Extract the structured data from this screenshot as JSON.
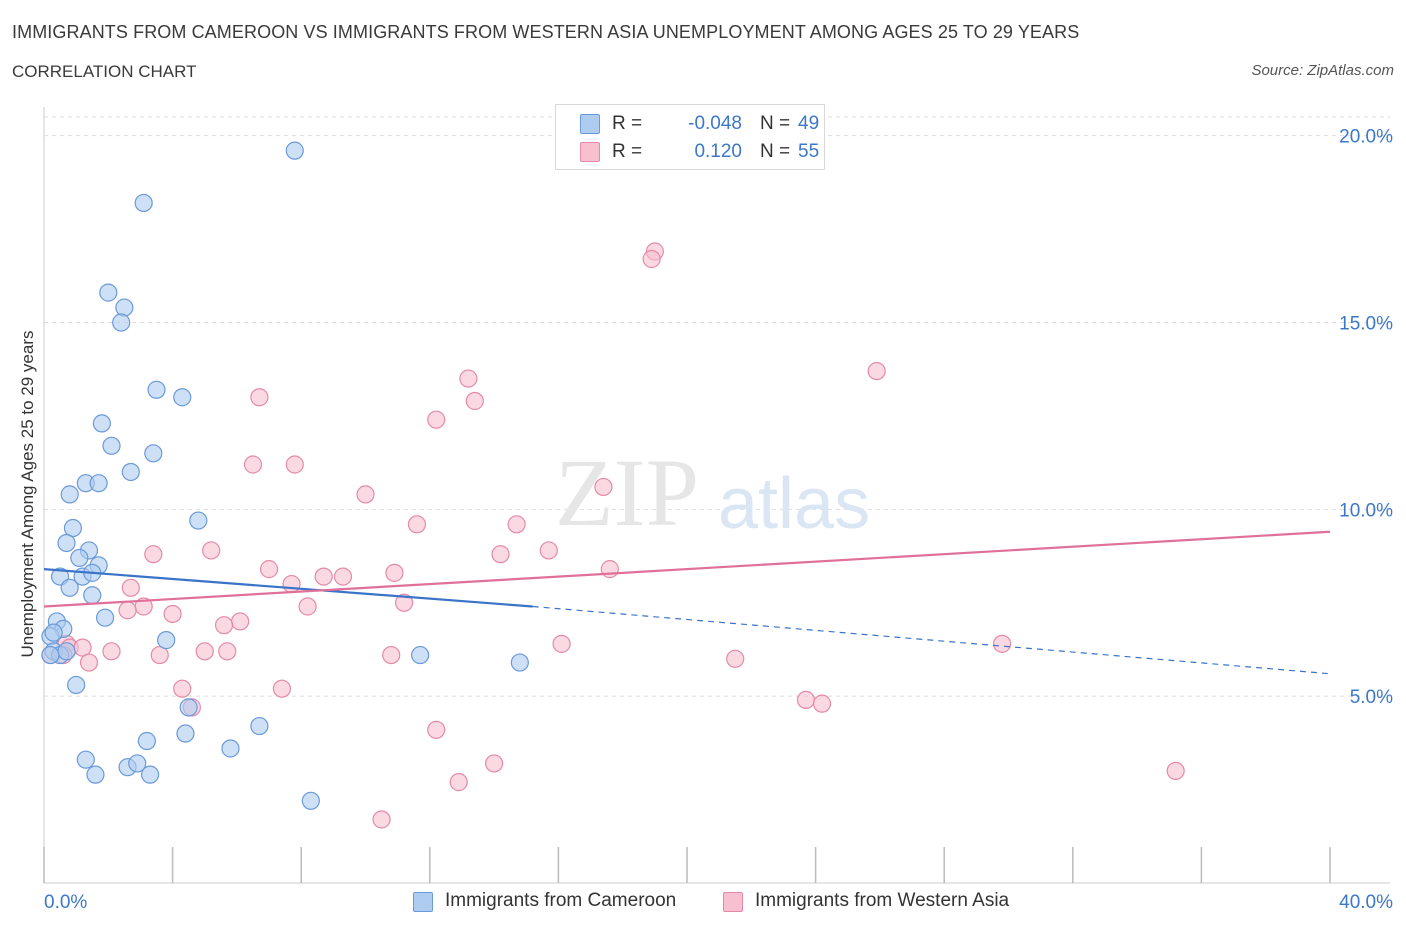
{
  "header": {
    "title": "IMMIGRANTS FROM CAMEROON VS IMMIGRANTS FROM WESTERN ASIA UNEMPLOYMENT AMONG AGES 25 TO 29 YEARS",
    "subtitle": "CORRELATION CHART",
    "source": "Source: ZipAtlas.com"
  },
  "colors": {
    "blue_fill": "#aecbf0",
    "blue_stroke": "#6a9ad8",
    "blue_line": "#3a74c8",
    "pink_fill": "#f6c0d0",
    "pink_stroke": "#e48aa8",
    "pink_line": "#e0709a",
    "tick_text": "#3c78c8",
    "grid": "#dddddd"
  },
  "legend": {
    "rows": [
      {
        "r_label": "R =",
        "r_value": "-0.048",
        "n_label": "N =",
        "n_value": "49"
      },
      {
        "r_label": "R =",
        "r_value": "0.120",
        "n_label": "N =",
        "n_value": "55"
      }
    ]
  },
  "bottom_legend": {
    "series_a": "Immigrants from Cameroon",
    "series_b": "Immigrants from Western Asia"
  },
  "watermark": {
    "zip": "ZIP",
    "atlas": "atlas"
  },
  "chart_data": {
    "type": "scatter",
    "title": "IMMIGRANTS FROM CAMEROON VS IMMIGRANTS FROM WESTERN ASIA UNEMPLOYMENT AMONG AGES 25 TO 29 YEARS",
    "xlabel": "",
    "ylabel": "Unemployment Among Ages 25 to 29 years",
    "xlim": [
      0,
      40
    ],
    "ylim": [
      0,
      20.5
    ],
    "x_tick_labels": [
      "0.0%",
      "40.0%"
    ],
    "y_ticks": [
      5,
      10,
      15,
      20
    ],
    "y_tick_labels": [
      "5.0%",
      "10.0%",
      "15.0%",
      "20.0%"
    ],
    "series": [
      {
        "name": "Immigrants from Cameroon",
        "R": -0.048,
        "N": 49,
        "trend": {
          "x0": 0,
          "y0": 8.4,
          "x1": 15.2,
          "y1": 7.4,
          "dash_x1": 40,
          "dash_y1": 5.6
        },
        "points": [
          [
            7.8,
            19.6
          ],
          [
            3.1,
            18.2
          ],
          [
            2.0,
            15.8
          ],
          [
            2.5,
            15.4
          ],
          [
            2.4,
            15.0
          ],
          [
            3.5,
            13.2
          ],
          [
            4.3,
            13.0
          ],
          [
            1.8,
            12.3
          ],
          [
            2.1,
            11.7
          ],
          [
            3.4,
            11.5
          ],
          [
            2.7,
            11.0
          ],
          [
            1.3,
            10.7
          ],
          [
            1.7,
            10.7
          ],
          [
            0.8,
            10.4
          ],
          [
            4.8,
            9.7
          ],
          [
            0.9,
            9.5
          ],
          [
            0.7,
            9.1
          ],
          [
            1.4,
            8.9
          ],
          [
            1.1,
            8.7
          ],
          [
            1.7,
            8.5
          ],
          [
            0.5,
            8.2
          ],
          [
            1.2,
            8.2
          ],
          [
            1.5,
            8.3
          ],
          [
            0.8,
            7.9
          ],
          [
            1.5,
            7.7
          ],
          [
            1.9,
            7.1
          ],
          [
            0.4,
            7.0
          ],
          [
            0.6,
            6.8
          ],
          [
            0.2,
            6.6
          ],
          [
            0.3,
            6.7
          ],
          [
            0.3,
            6.2
          ],
          [
            0.5,
            6.1
          ],
          [
            0.7,
            6.2
          ],
          [
            0.2,
            6.1
          ],
          [
            3.8,
            6.5
          ],
          [
            11.7,
            6.1
          ],
          [
            14.8,
            5.9
          ],
          [
            1.0,
            5.3
          ],
          [
            4.5,
            4.7
          ],
          [
            6.7,
            4.2
          ],
          [
            3.2,
            3.8
          ],
          [
            4.4,
            4.0
          ],
          [
            5.8,
            3.6
          ],
          [
            1.3,
            3.3
          ],
          [
            2.6,
            3.1
          ],
          [
            2.9,
            3.2
          ],
          [
            1.6,
            2.9
          ],
          [
            3.3,
            2.9
          ],
          [
            8.3,
            2.2
          ]
        ]
      },
      {
        "name": "Immigrants from Western Asia",
        "R": 0.12,
        "N": 55,
        "trend": {
          "x0": 0,
          "y0": 7.4,
          "x1": 40,
          "y1": 9.4
        },
        "points": [
          [
            19.0,
            16.9
          ],
          [
            18.9,
            16.7
          ],
          [
            25.9,
            13.7
          ],
          [
            13.2,
            13.5
          ],
          [
            13.4,
            12.9
          ],
          [
            6.7,
            13.0
          ],
          [
            12.2,
            12.4
          ],
          [
            6.5,
            11.2
          ],
          [
            7.8,
            11.2
          ],
          [
            17.4,
            10.6
          ],
          [
            10.0,
            10.4
          ],
          [
            11.6,
            9.6
          ],
          [
            14.7,
            9.6
          ],
          [
            5.2,
            8.9
          ],
          [
            3.4,
            8.8
          ],
          [
            14.2,
            8.8
          ],
          [
            15.7,
            8.9
          ],
          [
            7.0,
            8.4
          ],
          [
            10.9,
            8.3
          ],
          [
            17.6,
            8.4
          ],
          [
            8.7,
            8.2
          ],
          [
            9.3,
            8.2
          ],
          [
            7.7,
            8.0
          ],
          [
            2.7,
            7.9
          ],
          [
            3.1,
            7.4
          ],
          [
            2.6,
            7.3
          ],
          [
            11.2,
            7.5
          ],
          [
            8.2,
            7.4
          ],
          [
            4.0,
            7.2
          ],
          [
            6.1,
            7.0
          ],
          [
            5.6,
            6.9
          ],
          [
            0.7,
            6.4
          ],
          [
            0.8,
            6.3
          ],
          [
            1.2,
            6.3
          ],
          [
            2.1,
            6.2
          ],
          [
            5.0,
            6.2
          ],
          [
            5.7,
            6.2
          ],
          [
            3.6,
            6.1
          ],
          [
            0.2,
            6.1
          ],
          [
            0.6,
            6.1
          ],
          [
            1.4,
            5.9
          ],
          [
            10.8,
            6.1
          ],
          [
            16.1,
            6.4
          ],
          [
            21.5,
            6.0
          ],
          [
            29.8,
            6.4
          ],
          [
            4.3,
            5.2
          ],
          [
            7.4,
            5.2
          ],
          [
            4.6,
            4.7
          ],
          [
            23.7,
            4.9
          ],
          [
            24.2,
            4.8
          ],
          [
            12.2,
            4.1
          ],
          [
            14.0,
            3.2
          ],
          [
            12.9,
            2.7
          ],
          [
            35.2,
            3.0
          ],
          [
            10.5,
            1.7
          ]
        ]
      }
    ]
  }
}
